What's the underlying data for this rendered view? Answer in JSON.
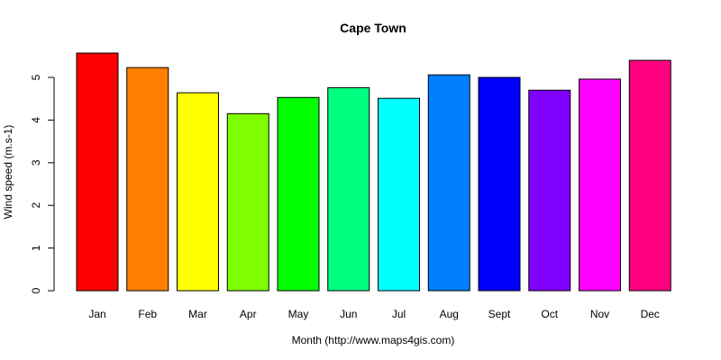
{
  "chart_data": {
    "type": "bar",
    "title": "Cape Town",
    "xlabel": "Month (http://www.maps4gis.com)",
    "ylabel": "Wind speed (m.s-1)",
    "categories": [
      "Jan",
      "Feb",
      "Mar",
      "Apr",
      "May",
      "Jun",
      "Jul",
      "Aug",
      "Sept",
      "Oct",
      "Nov",
      "Dec"
    ],
    "values": [
      5.57,
      5.23,
      4.64,
      4.15,
      4.53,
      4.76,
      4.51,
      5.06,
      5.0,
      4.7,
      4.96,
      5.4
    ],
    "colors": [
      "#FF0000",
      "#FF8000",
      "#FFFF00",
      "#80FF00",
      "#00FF00",
      "#00FF80",
      "#00FFFF",
      "#0080FF",
      "#0000FF",
      "#8000FF",
      "#FF00FF",
      "#FF0080"
    ],
    "yticks": [
      0,
      1,
      2,
      3,
      4,
      5
    ],
    "ylim": [
      0,
      5.57
    ],
    "grid": false,
    "legend": "none"
  }
}
